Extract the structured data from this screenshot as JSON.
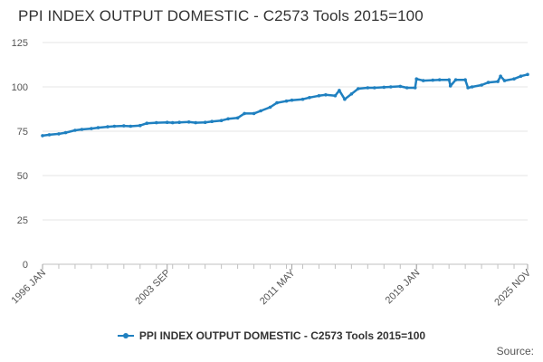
{
  "chart_data": {
    "type": "line",
    "title": "PPI INDEX OUTPUT DOMESTIC - C2573 Tools 2015=100",
    "xlabel": "",
    "ylabel": "",
    "ylim": [
      0,
      125
    ],
    "yticks": [
      "0",
      "25",
      "50",
      "75",
      "100",
      "125"
    ],
    "xticks": [
      "1996 JAN",
      "2003 SEP",
      "2011 MAY",
      "2019 JAN",
      "2025 NOV"
    ],
    "grid": true,
    "legend_position": "bottom",
    "series": [
      {
        "name": "PPI INDEX OUTPUT DOMESTIC - C2573 Tools 2015=100",
        "color": "#1f80c0",
        "points": [
          [
            "1996-01",
            72.5
          ],
          [
            "1996-06",
            73.0
          ],
          [
            "1997-01",
            73.5
          ],
          [
            "1997-06",
            74.2
          ],
          [
            "1998-01",
            75.5
          ],
          [
            "1998-06",
            76.0
          ],
          [
            "1999-01",
            76.5
          ],
          [
            "1999-06",
            77.0
          ],
          [
            "2000-01",
            77.5
          ],
          [
            "2000-06",
            77.8
          ],
          [
            "2001-01",
            78.0
          ],
          [
            "2001-06",
            77.8
          ],
          [
            "2002-01",
            78.2
          ],
          [
            "2002-06",
            79.5
          ],
          [
            "2003-01",
            79.8
          ],
          [
            "2003-09",
            80.0
          ],
          [
            "2004-01",
            79.8
          ],
          [
            "2004-06",
            80.0
          ],
          [
            "2005-01",
            80.2
          ],
          [
            "2005-06",
            79.8
          ],
          [
            "2006-01",
            80.0
          ],
          [
            "2006-06",
            80.5
          ],
          [
            "2007-01",
            81.0
          ],
          [
            "2007-06",
            82.0
          ],
          [
            "2008-01",
            82.5
          ],
          [
            "2008-06",
            85.0
          ],
          [
            "2009-01",
            85.0
          ],
          [
            "2009-06",
            86.5
          ],
          [
            "2010-01",
            88.5
          ],
          [
            "2010-06",
            91.0
          ],
          [
            "2011-01",
            92.0
          ],
          [
            "2011-05",
            92.5
          ],
          [
            "2012-01",
            93.0
          ],
          [
            "2012-06",
            94.0
          ],
          [
            "2013-01",
            95.0
          ],
          [
            "2013-06",
            95.5
          ],
          [
            "2014-01",
            95.0
          ],
          [
            "2014-04",
            98.0
          ],
          [
            "2014-08",
            93.0
          ],
          [
            "2015-01",
            96.0
          ],
          [
            "2015-06",
            99.0
          ],
          [
            "2016-01",
            99.5
          ],
          [
            "2016-06",
            99.5
          ],
          [
            "2017-01",
            99.8
          ],
          [
            "2017-06",
            100.0
          ],
          [
            "2018-01",
            100.3
          ],
          [
            "2018-06",
            99.5
          ],
          [
            "2018-12",
            99.5
          ],
          [
            "2019-01",
            104.5
          ],
          [
            "2019-06",
            103.5
          ],
          [
            "2020-01",
            103.8
          ],
          [
            "2020-06",
            104.0
          ],
          [
            "2021-01",
            104.0
          ],
          [
            "2021-02",
            100.5
          ],
          [
            "2021-06",
            104.0
          ],
          [
            "2022-01",
            104.0
          ],
          [
            "2022-03",
            99.5
          ],
          [
            "2022-06",
            100.0
          ],
          [
            "2023-01",
            101.0
          ],
          [
            "2023-06",
            102.5
          ],
          [
            "2024-01",
            103.0
          ],
          [
            "2024-03",
            106.0
          ],
          [
            "2024-06",
            103.5
          ],
          [
            "2025-01",
            104.5
          ],
          [
            "2025-06",
            106.0
          ],
          [
            "2025-11",
            107.0
          ]
        ]
      }
    ]
  },
  "legend": {
    "label": "PPI INDEX OUTPUT DOMESTIC - C2573 Tools 2015=100"
  },
  "source_label": "Source:"
}
